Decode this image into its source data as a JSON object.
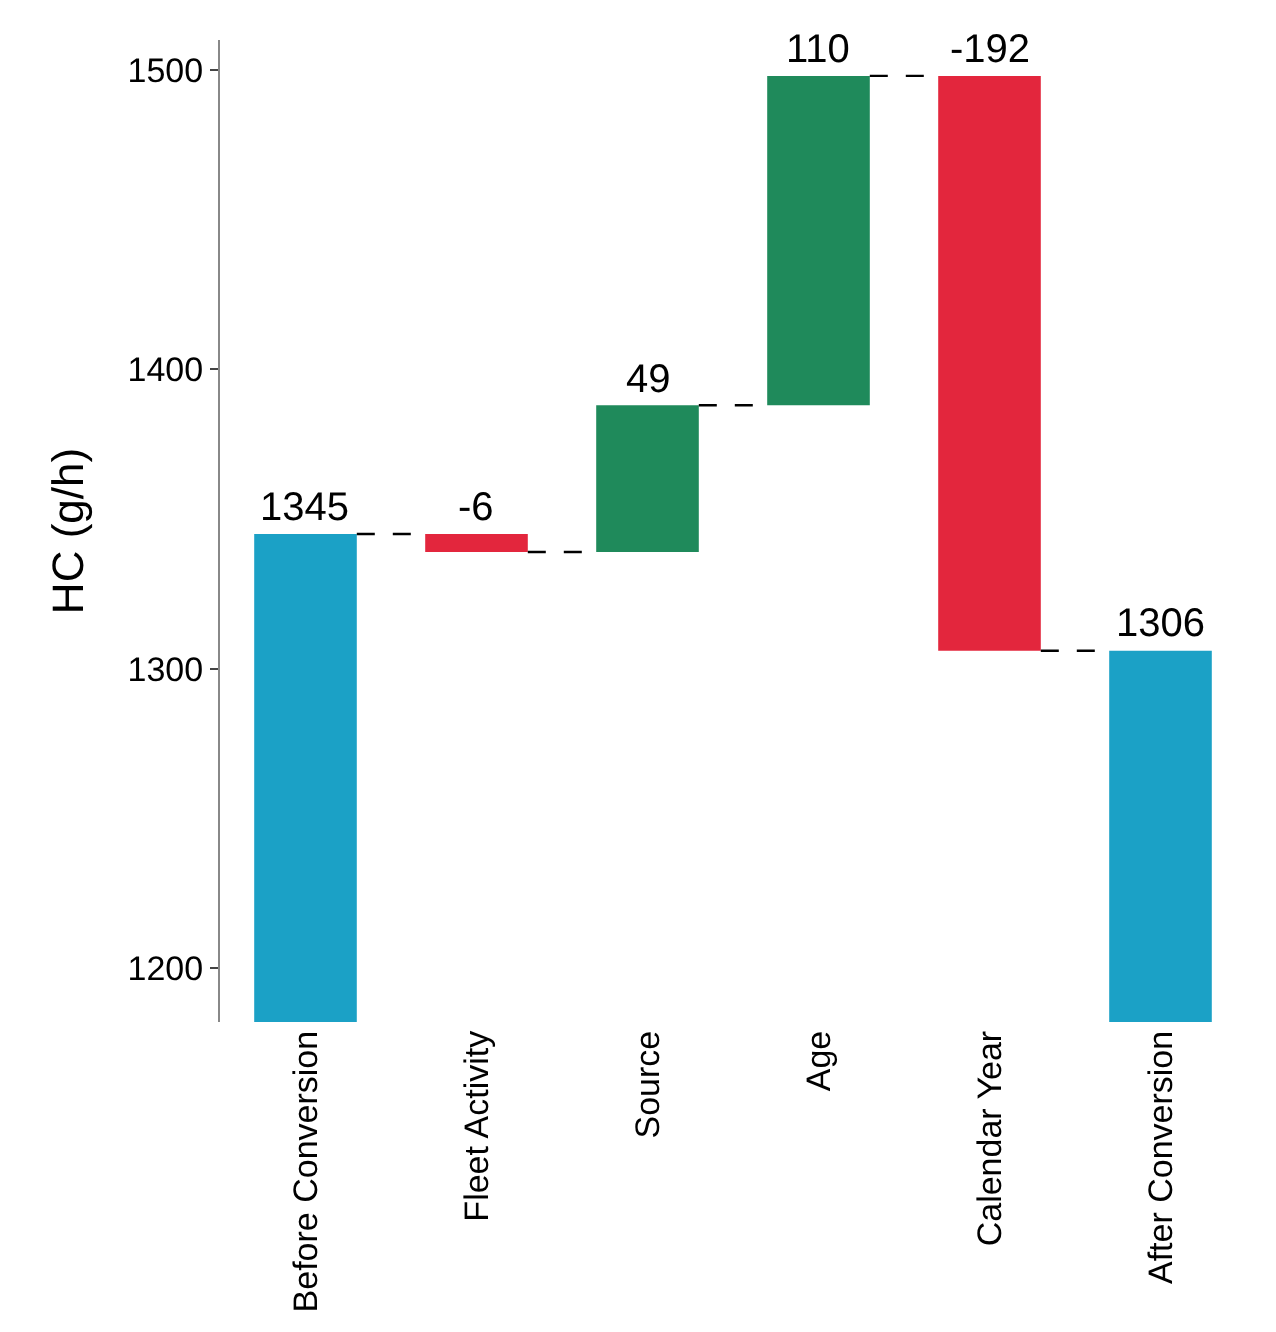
{
  "chart_data": {
    "type": "bar",
    "ylabel": "HC (g/h)",
    "categories": [
      "Before Conversion",
      "Fleet Activity",
      "Source",
      "Age",
      "Calendar Year",
      "After Conversion"
    ],
    "values": [
      1345,
      -6,
      49,
      110,
      -192,
      1306
    ],
    "base": [
      null,
      1345,
      1339,
      1388,
      1498,
      null
    ],
    "colors": [
      "#1ba1c6",
      "#e3263d",
      "#1f8a5b",
      "#1f8a5b",
      "#e3263d",
      "#1ba1c6"
    ],
    "ylim": [
      1182,
      1510
    ],
    "yticks": [
      1200,
      1300,
      1400,
      1500
    ],
    "data_labels": true,
    "legend": false
  }
}
